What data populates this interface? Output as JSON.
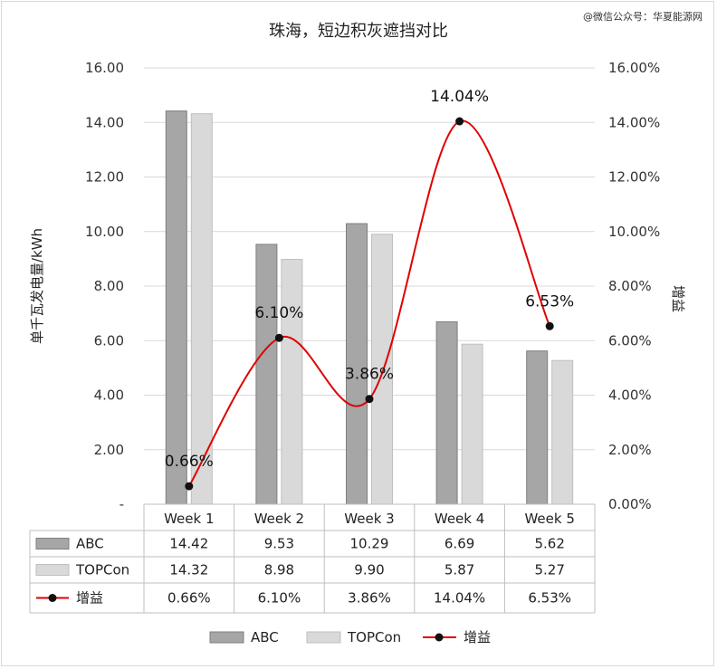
{
  "watermark": "@微信公众号：华夏能源网",
  "chart_data": {
    "type": "bar",
    "title": "珠海，短边积灰遮挡对比",
    "categories": [
      "Week 1",
      "Week 2",
      "Week 3",
      "Week 4",
      "Week 5"
    ],
    "series": [
      {
        "name": "ABC",
        "kind": "bar",
        "axis": "left",
        "color": "#a6a6a6",
        "values": [
          14.42,
          9.53,
          10.29,
          6.69,
          5.62
        ],
        "labels": [
          "14.42",
          "9.53",
          "10.29",
          "6.69",
          "5.62"
        ]
      },
      {
        "name": "TOPCon",
        "kind": "bar",
        "axis": "left",
        "color": "#d9d9d9",
        "values": [
          14.32,
          8.98,
          9.9,
          5.87,
          5.27
        ],
        "labels": [
          "14.32",
          "8.98",
          "9.90",
          "5.87",
          "5.27"
        ]
      },
      {
        "name": "增益",
        "kind": "line",
        "axis": "right",
        "color": "#e00000",
        "values": [
          0.66,
          6.1,
          3.86,
          14.04,
          6.53
        ],
        "labels": [
          "0.66%",
          "6.10%",
          "3.86%",
          "14.04%",
          "6.53%"
        ]
      }
    ],
    "ylabel": "单千瓦发电量/kWh",
    "y2label": "增益",
    "ylim": [
      0,
      16
    ],
    "y2lim": [
      0,
      16
    ],
    "yticks": [
      "-",
      "2.00",
      "4.00",
      "6.00",
      "8.00",
      "10.00",
      "12.00",
      "14.00",
      "16.00"
    ],
    "y2ticks": [
      "0.00%",
      "2.00%",
      "4.00%",
      "6.00%",
      "8.00%",
      "10.00%",
      "12.00%",
      "14.00%",
      "16.00%"
    ],
    "grid": true,
    "legend": "bottom",
    "data_table": true
  }
}
